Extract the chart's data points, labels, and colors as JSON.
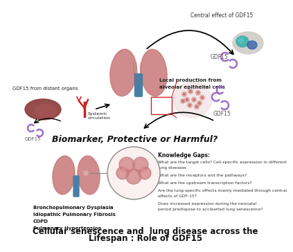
{
  "background_color": "#ffffff",
  "title_line1": "Cellular senescence and  lung disease across the",
  "title_line2": "Lifespan : Role of GDF15",
  "title_fontsize": 8.5,
  "title_fontweight": "bold",
  "central_label": "Central effect of GDF15",
  "biomarker_label": "Biomarker, Protective or Harmful?",
  "biomarker_fontsize": 9,
  "biomarker_fontstyle": "italic",
  "biomarker_fontweight": "bold",
  "gdf15_distant": "GDF15 from distant organs",
  "systemic_circ": "Systemic\ncirculation",
  "gdf15_label_left": "GDF15",
  "gdf15_label_mid": "GDF15",
  "gdf15_label_top": "GDF15",
  "local_prod_line1": "Local production from",
  "local_prod_line2": "alveolar epithelial cells",
  "knowledge_gaps_title": "Knowledge Gaps:",
  "knowledge_gaps": [
    "What are the target cells? Cell-specific expression in different\nlung diseases",
    "What are the receptors and the pathways?",
    "What are the upstream transcription factors?",
    "Are the lung-specific effects mainly mediated through central\neffects of GDF-15?",
    "Does increased expression during the neonatal\nperiod predispose to acclearted lung senescence?"
  ],
  "diseases": [
    "Bronchopulmonary Dysplasia",
    "Idiopathic Pulmonary Fibrosis",
    "COPD",
    "Pulmonary Hypertension"
  ],
  "lung_color": "#c87878",
  "bronchi_color": "#4a7fa5",
  "liver_color": "#8B4040",
  "arrow_color": "#000000",
  "gdf15_mol_color": "#9b6fc8",
  "highlight_color": "#cc2222",
  "brain_base": "#d0ccc8",
  "brain_teal": "#3aada8",
  "brain_blue": "#2255aa"
}
